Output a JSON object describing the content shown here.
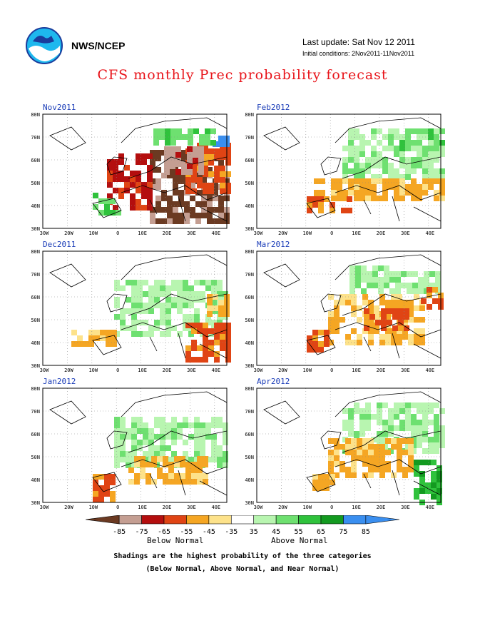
{
  "header": {
    "agency": "NWS/NCEP",
    "last_update": "Last update: Sat Nov 12 2011",
    "initial_conditions": "Initial conditions: 2Nov2011-11Nov2011",
    "title": "CFS monthly Prec probability forecast",
    "logo_icon": "noaa-logo-icon"
  },
  "axes": {
    "lat_labels": [
      "80N",
      "70N",
      "60N",
      "50N",
      "40N",
      "30N"
    ],
    "lon_labels": [
      "30W",
      "20W",
      "10W",
      "0",
      "10E",
      "20E",
      "30E",
      "40E"
    ]
  },
  "panels": [
    {
      "id": "nov2011",
      "label": "Nov2011",
      "col": 0,
      "row": 0
    },
    {
      "id": "feb2012",
      "label": "Feb2012",
      "col": 1,
      "row": 0
    },
    {
      "id": "dec2011",
      "label": "Dec2011",
      "col": 0,
      "row": 1
    },
    {
      "id": "mar2012",
      "label": "Mar2012",
      "col": 1,
      "row": 1
    },
    {
      "id": "jan2012",
      "label": "Jan2012",
      "col": 0,
      "row": 2
    },
    {
      "id": "apr2012",
      "label": "Apr2012",
      "col": 1,
      "row": 2
    }
  ],
  "legend": {
    "ticks": [
      "-85",
      "-75",
      "-65",
      "-55",
      "-45",
      "-35",
      "35",
      "45",
      "55",
      "65",
      "75",
      "85"
    ],
    "colors": [
      "#6b3a22",
      "#c49e92",
      "#b40e0e",
      "#e04414",
      "#f5a623",
      "#fde28a",
      "#ffffff",
      "#b8f5b0",
      "#6ee070",
      "#2fc23c",
      "#139a20",
      "#3a8ff0",
      "#3a8ff0"
    ],
    "below_normal": "Below Normal",
    "above_normal": "Above Normal"
  },
  "notes": {
    "line1": "Shadings are the highest probability of the three categories",
    "line2": "(Below Normal, Above Normal, and Near Normal)"
  }
}
